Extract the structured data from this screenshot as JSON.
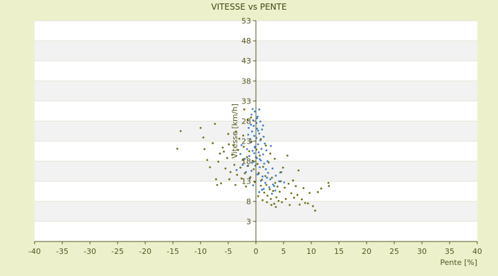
{
  "chart_data": {
    "type": "scatter",
    "title": "VITESSE vs PENTE",
    "xlabel": "Pente [%]",
    "ylabel": "Vitesse [km/h]",
    "xlim": [
      -40,
      40
    ],
    "ylim": [
      -2,
      53
    ],
    "x_ticks": [
      -40,
      -35,
      -30,
      -25,
      -20,
      -15,
      -10,
      -5,
      0,
      5,
      10,
      15,
      20,
      25,
      30,
      35,
      40
    ],
    "y_ticks": [
      3,
      8,
      13,
      18,
      23,
      28,
      33,
      38,
      43,
      48,
      53
    ],
    "grid": "horizontal bands",
    "legend": "none",
    "series": [
      {
        "color": "#3a7fd0",
        "points": [
          [
            -0.8,
            29.6
          ],
          [
            -0.5,
            28.2
          ],
          [
            -0.2,
            30.4
          ],
          [
            0.1,
            27.5
          ],
          [
            0.3,
            29.1
          ],
          [
            -0.4,
            26.8
          ],
          [
            0.2,
            26.1
          ],
          [
            -0.7,
            25.4
          ],
          [
            0.6,
            24.9
          ],
          [
            -0.3,
            24.3
          ],
          [
            0.1,
            23.8
          ],
          [
            0.8,
            23.2
          ],
          [
            -0.9,
            22.7
          ],
          [
            0.4,
            22.2
          ],
          [
            -0.2,
            21.6
          ],
          [
            1.0,
            21.1
          ],
          [
            -0.6,
            20.6
          ],
          [
            0.5,
            20.2
          ],
          [
            1.3,
            19.7
          ],
          [
            -1.2,
            19.3
          ],
          [
            0.2,
            18.8
          ],
          [
            0.9,
            18.2
          ],
          [
            -0.4,
            17.9
          ],
          [
            1.5,
            17.4
          ],
          [
            -1.5,
            16.8
          ],
          [
            0.7,
            16.5
          ],
          [
            1.8,
            16.0
          ],
          [
            -0.8,
            15.6
          ],
          [
            2.2,
            15.1
          ],
          [
            0.3,
            14.7
          ],
          [
            1.2,
            14.2
          ],
          [
            -1.1,
            13.8
          ],
          [
            2.6,
            13.5
          ],
          [
            0.9,
            13.1
          ],
          [
            1.7,
            12.6
          ],
          [
            3.1,
            12.2
          ],
          [
            -0.5,
            12.0
          ],
          [
            2.4,
            11.5
          ],
          [
            1.4,
            11.1
          ],
          [
            3.5,
            10.7
          ],
          [
            0.6,
            10.3
          ],
          [
            2.9,
            9.9
          ],
          [
            -0.2,
            21.4
          ],
          [
            0.4,
            25.6
          ],
          [
            -1.0,
            23.5
          ],
          [
            1.1,
            25.9
          ],
          [
            -1.6,
            21.0
          ],
          [
            0.0,
            19.0
          ],
          [
            -2.0,
            18.6
          ],
          [
            1.9,
            20.7
          ],
          [
            -2.4,
            17.1
          ],
          [
            2.1,
            18.0
          ],
          [
            -1.8,
            15.3
          ],
          [
            3.0,
            16.2
          ],
          [
            -3.5,
            15.8
          ],
          [
            -2.8,
            19.8
          ],
          [
            -0.1,
            16.9
          ],
          [
            0.5,
            14.9
          ],
          [
            1.6,
            22.4
          ],
          [
            -1.3,
            26.3
          ],
          [
            0.8,
            27.9
          ],
          [
            -0.6,
            31.0
          ],
          [
            1.4,
            24.1
          ],
          [
            -2.6,
            22.0
          ],
          [
            2.7,
            21.8
          ],
          [
            3.6,
            14.4
          ],
          [
            4.2,
            13.0
          ],
          [
            4.6,
            15.3
          ],
          [
            3.3,
            11.8
          ],
          [
            5.1,
            12.7
          ],
          [
            0.2,
            28.7
          ],
          [
            -0.9,
            27.1
          ],
          [
            0.6,
            30.9
          ],
          [
            1.3,
            26.9
          ],
          [
            -0.3,
            20.0
          ],
          [
            0.7,
            18.5
          ],
          [
            -1.4,
            24.6
          ],
          [
            2.0,
            13.9
          ],
          [
            1.1,
            10.9
          ],
          [
            -0.7,
            17.6
          ]
        ]
      },
      {
        "color": "#6f6f12",
        "points": [
          [
            -14.2,
            21.1
          ],
          [
            -13.6,
            25.5
          ],
          [
            -10.0,
            26.3
          ],
          [
            -9.5,
            23.9
          ],
          [
            -9.3,
            21.0
          ],
          [
            -8.8,
            18.3
          ],
          [
            -8.3,
            16.5
          ],
          [
            -7.8,
            22.5
          ],
          [
            -7.4,
            27.3
          ],
          [
            -7.2,
            13.5
          ],
          [
            -7.0,
            12.1
          ],
          [
            -6.8,
            17.9
          ],
          [
            -6.5,
            19.9
          ],
          [
            -6.3,
            12.5
          ],
          [
            -6.0,
            21.4
          ],
          [
            -5.8,
            20.4
          ],
          [
            -5.5,
            16.2
          ],
          [
            -5.2,
            18.8
          ],
          [
            -5.0,
            24.8
          ],
          [
            -4.8,
            13.5
          ],
          [
            -4.6,
            15.3
          ],
          [
            -4.3,
            19.6
          ],
          [
            -4.1,
            22.0
          ],
          [
            -3.9,
            17.1
          ],
          [
            -3.7,
            12.1
          ],
          [
            -3.4,
            14.6
          ],
          [
            -3.2,
            20.8
          ],
          [
            -3.0,
            23.6
          ],
          [
            -2.8,
            16.4
          ],
          [
            -2.6,
            13.7
          ],
          [
            -2.4,
            18.3
          ],
          [
            -2.2,
            21.6
          ],
          [
            -2.0,
            15.0
          ],
          [
            -1.8,
            11.7
          ],
          [
            -1.6,
            19.0
          ],
          [
            -1.4,
            16.9
          ],
          [
            -1.2,
            20.5
          ],
          [
            -1.0,
            14.0
          ],
          [
            -0.8,
            22.9
          ],
          [
            -0.6,
            18.1
          ],
          [
            -0.4,
            16.0
          ],
          [
            -0.2,
            12.8
          ],
          [
            0.1,
            20.9
          ],
          [
            0.3,
            17.3
          ],
          [
            0.5,
            15.1
          ],
          [
            0.7,
            19.4
          ],
          [
            0.9,
            11.9
          ],
          [
            1.1,
            13.4
          ],
          [
            1.3,
            16.6
          ],
          [
            1.5,
            10.2
          ],
          [
            1.7,
            14.3
          ],
          [
            1.9,
            12.1
          ],
          [
            2.1,
            9.4
          ],
          [
            2.3,
            17.7
          ],
          [
            2.5,
            11.0
          ],
          [
            2.7,
            8.6
          ],
          [
            2.9,
            13.9
          ],
          [
            3.1,
            10.6
          ],
          [
            3.3,
            7.4
          ],
          [
            3.5,
            12.6
          ],
          [
            3.7,
            9.0
          ],
          [
            3.9,
            11.7
          ],
          [
            4.1,
            8.1
          ],
          [
            4.3,
            10.4
          ],
          [
            4.5,
            13.0
          ],
          [
            4.7,
            7.8
          ],
          [
            4.9,
            16.4
          ],
          [
            5.2,
            11.4
          ],
          [
            5.4,
            8.6
          ],
          [
            5.7,
            19.4
          ],
          [
            5.9,
            12.4
          ],
          [
            6.1,
            7.1
          ],
          [
            6.4,
            10.0
          ],
          [
            6.7,
            13.2
          ],
          [
            6.9,
            8.9
          ],
          [
            7.2,
            11.8
          ],
          [
            7.5,
            9.6
          ],
          [
            7.7,
            15.7
          ],
          [
            7.9,
            7.2
          ],
          [
            8.3,
            8.5
          ],
          [
            8.6,
            11.3
          ],
          [
            8.9,
            7.6
          ],
          [
            9.4,
            7.5
          ],
          [
            9.7,
            10.1
          ],
          [
            10.3,
            6.8
          ],
          [
            10.7,
            5.7
          ],
          [
            11.2,
            10.3
          ],
          [
            11.8,
            11.2
          ],
          [
            13.1,
            12.6
          ],
          [
            13.2,
            11.8
          ],
          [
            -1.5,
            28.3
          ],
          [
            -2.1,
            30.9
          ],
          [
            -0.9,
            28.9
          ],
          [
            0.4,
            9.3
          ],
          [
            1.2,
            8.3
          ],
          [
            2.0,
            7.8
          ],
          [
            2.8,
            7.1
          ],
          [
            3.6,
            6.6
          ],
          [
            -4.9,
            22.2
          ],
          [
            -3.6,
            25.4
          ],
          [
            -2.3,
            24.4
          ],
          [
            0.9,
            23.5
          ],
          [
            1.8,
            21.9
          ],
          [
            2.6,
            19.9
          ],
          [
            3.4,
            18.6
          ],
          [
            4.4,
            15.2
          ]
        ]
      }
    ]
  }
}
